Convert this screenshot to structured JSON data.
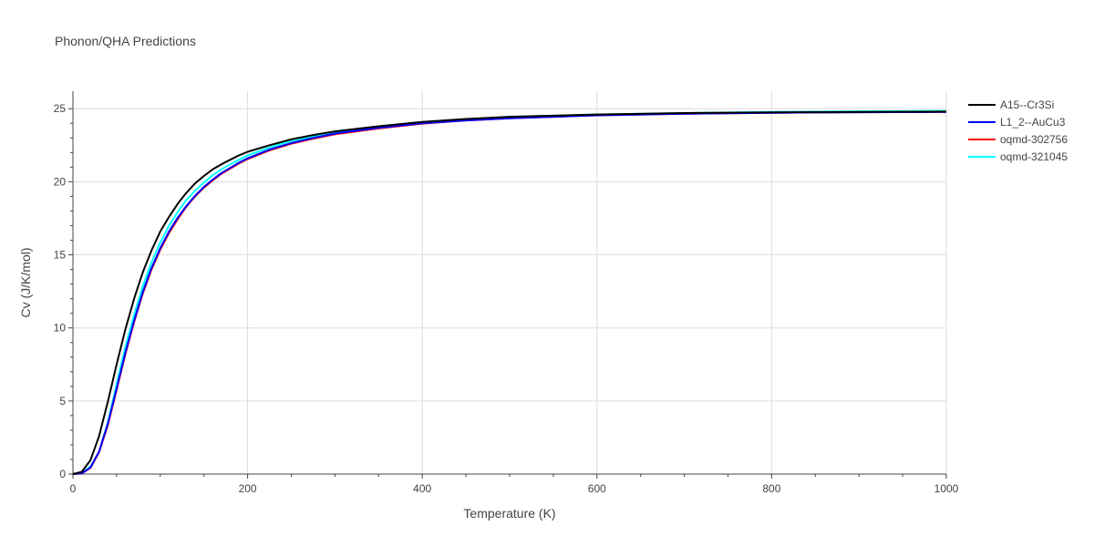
{
  "chart_data": {
    "type": "line",
    "title": "Phonon/QHA Predictions",
    "xlabel": "Temperature (K)",
    "ylabel": "Cv (J/K/mol)",
    "xlim": [
      0,
      1000
    ],
    "ylim": [
      0,
      26.2
    ],
    "x_ticks": [
      0,
      200,
      400,
      600,
      800,
      1000
    ],
    "y_ticks": [
      0,
      5,
      10,
      15,
      20,
      25
    ],
    "grid": true,
    "legend_position": "right",
    "x": [
      0,
      10,
      20,
      30,
      40,
      50,
      60,
      70,
      80,
      90,
      100,
      110,
      120,
      130,
      140,
      150,
      160,
      170,
      180,
      190,
      200,
      225,
      250,
      275,
      300,
      350,
      400,
      450,
      500,
      600,
      700,
      800,
      900,
      1000
    ],
    "series": [
      {
        "name": "A15--Cr3Si",
        "color": "#000000",
        "values": [
          0,
          0.15,
          0.95,
          2.6,
          4.95,
          7.5,
          9.9,
          12.0,
          13.8,
          15.3,
          16.6,
          17.6,
          18.5,
          19.25,
          19.9,
          20.4,
          20.85,
          21.2,
          21.5,
          21.8,
          22.05,
          22.5,
          22.9,
          23.2,
          23.45,
          23.8,
          24.1,
          24.3,
          24.45,
          24.6,
          24.7,
          24.75,
          24.78,
          24.8
        ]
      },
      {
        "name": "L1_2--AuCu3",
        "color": "#0000ff",
        "values": [
          0,
          0.05,
          0.45,
          1.55,
          3.45,
          5.85,
          8.3,
          10.5,
          12.45,
          14.1,
          15.45,
          16.6,
          17.55,
          18.35,
          19.05,
          19.65,
          20.15,
          20.6,
          20.95,
          21.3,
          21.6,
          22.2,
          22.65,
          23.0,
          23.3,
          23.7,
          24.0,
          24.2,
          24.35,
          24.55,
          24.65,
          24.72,
          24.76,
          24.78
        ]
      },
      {
        "name": "oqmd-302756",
        "color": "#ff0000",
        "values": [
          0,
          0.04,
          0.42,
          1.5,
          3.35,
          5.75,
          8.2,
          10.4,
          12.35,
          14.0,
          15.35,
          16.5,
          17.45,
          18.3,
          19.0,
          19.6,
          20.1,
          20.55,
          20.9,
          21.25,
          21.55,
          22.15,
          22.6,
          22.95,
          23.25,
          23.65,
          23.98,
          24.2,
          24.35,
          24.55,
          24.65,
          24.72,
          24.76,
          24.78
        ]
      },
      {
        "name": "oqmd-321045",
        "color": "#00ffff",
        "values": [
          0,
          0.08,
          0.5,
          1.5,
          3.55,
          6.15,
          8.7,
          10.9,
          12.85,
          14.5,
          15.85,
          17.0,
          17.95,
          18.75,
          19.4,
          19.95,
          20.45,
          20.85,
          21.2,
          21.5,
          21.8,
          22.35,
          22.8,
          23.1,
          23.35,
          23.75,
          24.05,
          24.28,
          24.45,
          24.6,
          24.7,
          24.78,
          24.82,
          24.85
        ]
      }
    ]
  }
}
